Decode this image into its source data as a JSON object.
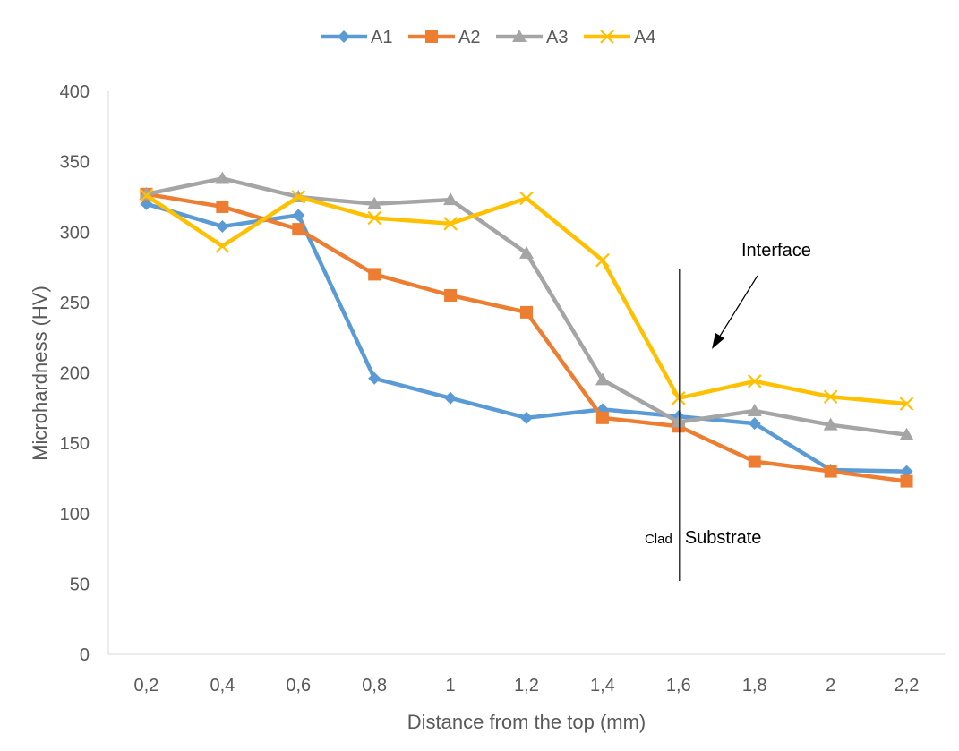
{
  "chart_data": {
    "type": "line",
    "title": "",
    "xlabel": "Distance from the top (mm)",
    "ylabel": "Microhardness  (HV)",
    "categories": [
      "0,2",
      "0,4",
      "0,6",
      "0,8",
      "1",
      "1,2",
      "1,4",
      "1,6",
      "1,8",
      "2",
      "2,2"
    ],
    "ylim": [
      0,
      400
    ],
    "yticks": [
      "0",
      "50",
      "100",
      "150",
      "200",
      "250",
      "300",
      "350",
      "400"
    ],
    "grid": false,
    "legend_position": "top",
    "series": [
      {
        "name": "A1",
        "color": "#5b9bd5",
        "marker": "diamond",
        "values": [
          320,
          304,
          312,
          196,
          182,
          168,
          174,
          169,
          164,
          131,
          130
        ]
      },
      {
        "name": "A2",
        "color": "#ed7d31",
        "marker": "square",
        "values": [
          327,
          318,
          302,
          270,
          255,
          243,
          168,
          162,
          137,
          130,
          123
        ]
      },
      {
        "name": "A3",
        "color": "#a5a5a5",
        "marker": "triangle",
        "values": [
          327,
          338,
          325,
          320,
          323,
          285,
          195,
          165,
          173,
          163,
          156
        ]
      },
      {
        "name": "A4",
        "color": "#ffc000",
        "marker": "x",
        "values": [
          326,
          290,
          325,
          310,
          306,
          324,
          280,
          182,
          194,
          183,
          178
        ]
      }
    ],
    "annotations": {
      "interface_label": "Interface",
      "clad_label": "Clad",
      "substrate_label": "Substrate",
      "interface_at": "1,6"
    }
  }
}
